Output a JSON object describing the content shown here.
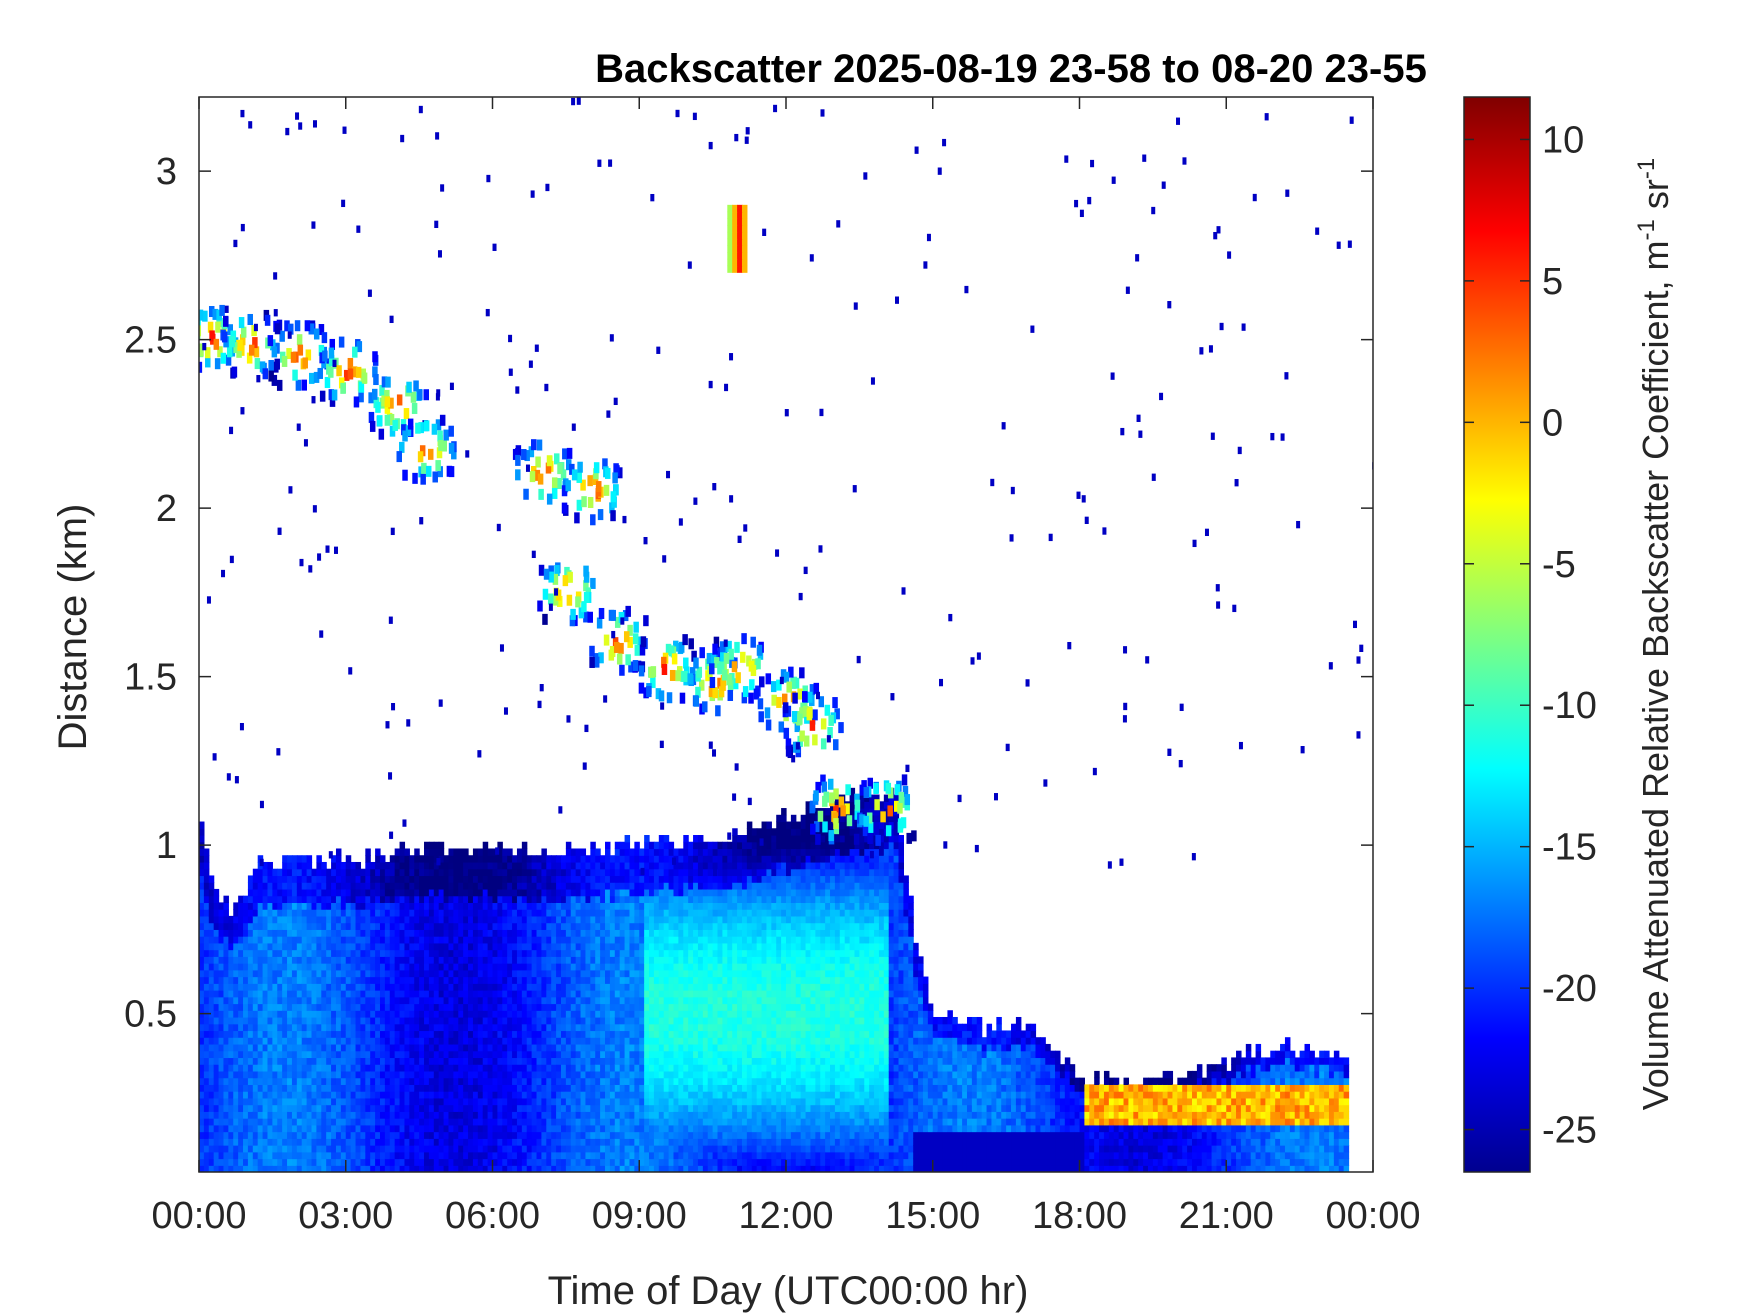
{
  "chart_data": {
    "type": "heatmap",
    "title": "Backscatter 2025-08-19 23-58 to 08-20 23-55",
    "xlabel": "Time of Day (UTC00:00 hr)",
    "ylabel": "Distance (km)",
    "xlim": [
      0,
      24
    ],
    "ylim": [
      0.03,
      3.22
    ],
    "x_ticks": [
      {
        "value": 0,
        "label": "00:00"
      },
      {
        "value": 3,
        "label": "03:00"
      },
      {
        "value": 6,
        "label": "06:00"
      },
      {
        "value": 9,
        "label": "09:00"
      },
      {
        "value": 12,
        "label": "12:00"
      },
      {
        "value": 15,
        "label": "15:00"
      },
      {
        "value": 18,
        "label": "18:00"
      },
      {
        "value": 21,
        "label": "21:00"
      },
      {
        "value": 24,
        "label": "00:00"
      }
    ],
    "y_ticks": [
      {
        "value": 0.5,
        "label": "0.5"
      },
      {
        "value": 1,
        "label": "1"
      },
      {
        "value": 1.5,
        "label": "1.5"
      },
      {
        "value": 2,
        "label": "2"
      },
      {
        "value": 2.5,
        "label": "2.5"
      },
      {
        "value": 3,
        "label": "3"
      }
    ],
    "colorbar": {
      "label": "Volume Attenuated Relative Backscatter Coefficient, m",
      "label_sup1": "-1",
      "label_mid": " sr",
      "label_sup2": "-1",
      "range": [
        -26.5,
        11.5
      ],
      "colormap": "jet",
      "ticks": [
        {
          "value": 10,
          "label": "10"
        },
        {
          "value": 5,
          "label": "5"
        },
        {
          "value": 0,
          "label": "0"
        },
        {
          "value": -5,
          "label": "-5"
        },
        {
          "value": -10,
          "label": "-10"
        },
        {
          "value": -15,
          "label": "-15"
        },
        {
          "value": -20,
          "label": "-20"
        },
        {
          "value": -25,
          "label": "-25"
        }
      ]
    },
    "features": {
      "boundary_layer_top_km": [
        [
          0,
          1.05
        ],
        [
          0.3,
          0.85
        ],
        [
          0.7,
          0.8
        ],
        [
          1.2,
          0.95
        ],
        [
          3,
          0.95
        ],
        [
          5,
          0.98
        ],
        [
          7,
          0.97
        ],
        [
          9,
          1.0
        ],
        [
          10.5,
          1.0
        ],
        [
          11.5,
          1.05
        ],
        [
          12.5,
          1.1
        ],
        [
          13.5,
          1.15
        ],
        [
          14.2,
          1.15
        ],
        [
          14.6,
          0.7
        ],
        [
          15,
          0.5
        ],
        [
          16,
          0.45
        ],
        [
          17,
          0.45
        ],
        [
          18,
          0.3
        ],
        [
          19,
          0.3
        ],
        [
          20,
          0.3
        ],
        [
          21,
          0.35
        ],
        [
          22,
          0.4
        ],
        [
          23.3,
          0.35
        ]
      ],
      "cloud_layer_km": [
        [
          0.2,
          2.5
        ],
        [
          1.0,
          2.48
        ],
        [
          2.0,
          2.45
        ],
        [
          3.0,
          2.4
        ],
        [
          4.0,
          2.3
        ],
        [
          4.6,
          2.17
        ],
        [
          7.0,
          2.1
        ],
        [
          8.0,
          2.05
        ],
        [
          7.5,
          1.75
        ],
        [
          8.5,
          1.6
        ],
        [
          9.5,
          1.52
        ],
        [
          10.5,
          1.48
        ],
        [
          11.0,
          1.52
        ],
        [
          12.0,
          1.42
        ],
        [
          12.5,
          1.35
        ],
        [
          13.0,
          1.1
        ],
        [
          14.0,
          1.1
        ]
      ],
      "isolated_cloud": {
        "x": 11.0,
        "y_range": [
          2.7,
          2.9
        ],
        "value": 6
      },
      "low_cloud_band": {
        "x_range": [
          18,
          23.5
        ],
        "y": 0.22,
        "value": 0
      },
      "ml_peak_region": {
        "x_range": [
          9,
          14
        ],
        "y": 0.5,
        "value": -11
      }
    }
  }
}
